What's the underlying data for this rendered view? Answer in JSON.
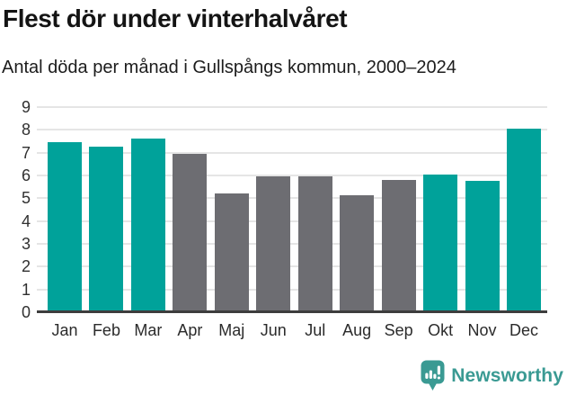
{
  "chart_data": {
    "type": "bar",
    "title": "Flest dör under vinterhalvåret",
    "subtitle": "Antal döda per månad i Gullspångs kommun, 2000–2024",
    "categories": [
      "Jan",
      "Feb",
      "Mar",
      "Apr",
      "Maj",
      "Jun",
      "Jul",
      "Aug",
      "Sep",
      "Okt",
      "Nov",
      "Dec"
    ],
    "values": [
      7.45,
      7.25,
      7.6,
      6.95,
      5.2,
      5.95,
      5.95,
      5.15,
      5.8,
      6.05,
      5.75,
      8.05
    ],
    "bar_colors": [
      "teal",
      "teal",
      "teal",
      "gray",
      "gray",
      "gray",
      "gray",
      "gray",
      "gray",
      "teal",
      "teal",
      "teal"
    ],
    "colors": {
      "teal": "#00a29a",
      "gray": "#6d6d72"
    },
    "xlabel": "",
    "ylabel": "",
    "ylim": [
      0,
      9
    ],
    "yticks": [
      0,
      1,
      2,
      3,
      4,
      5,
      6,
      7,
      8,
      9
    ],
    "grid": "horizontal gridlines at integer ticks",
    "legend": "none"
  },
  "footer": {
    "brand": "Newsworthy",
    "brand_color": "#3a9a93"
  }
}
